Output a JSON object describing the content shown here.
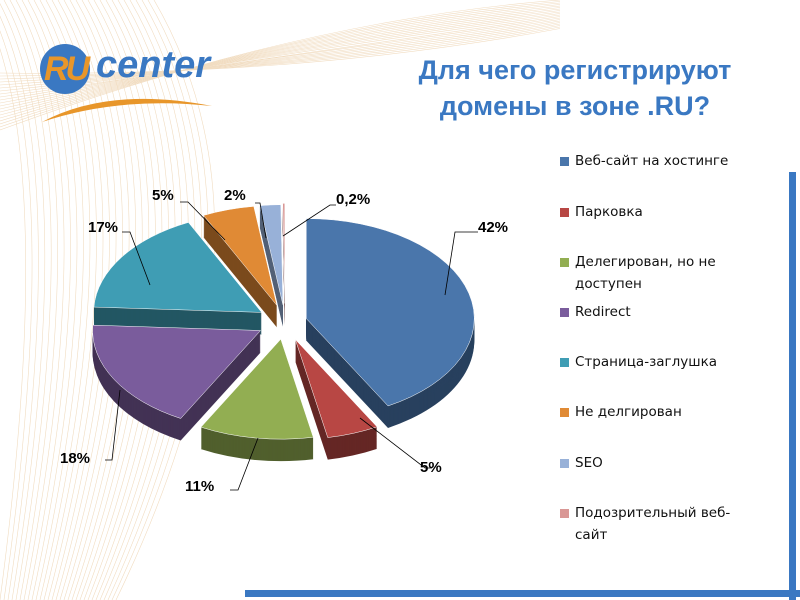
{
  "logo": {
    "text_ru": "RU",
    "text_center": "center"
  },
  "title": [
    "Для чего регистрируют",
    "домены в зоне .RU?"
  ],
  "chart_data": {
    "type": "pie",
    "title": "Для чего регистрируют домены в зоне .RU?",
    "legend_position": "right",
    "categories": [
      "Веб-сайт на хостинге",
      "Парковка",
      "Делегирован, но не доступен",
      "Redirect",
      "Страница-заглушка",
      "Не делгирован",
      "SEO",
      "Подозрительный веб-сайт"
    ],
    "values": [
      42,
      5,
      11,
      18,
      17,
      5,
      2,
      0.2
    ],
    "data_labels": [
      "42%",
      "5%",
      "11%",
      "18%",
      "17%",
      "5%",
      "2%",
      "0,2%"
    ],
    "colors": [
      "#4a76ab",
      "#b84744",
      "#92ae52",
      "#7a5c9c",
      "#3f9db4",
      "#e08a35",
      "#98b1d8",
      "#d99795"
    ]
  }
}
